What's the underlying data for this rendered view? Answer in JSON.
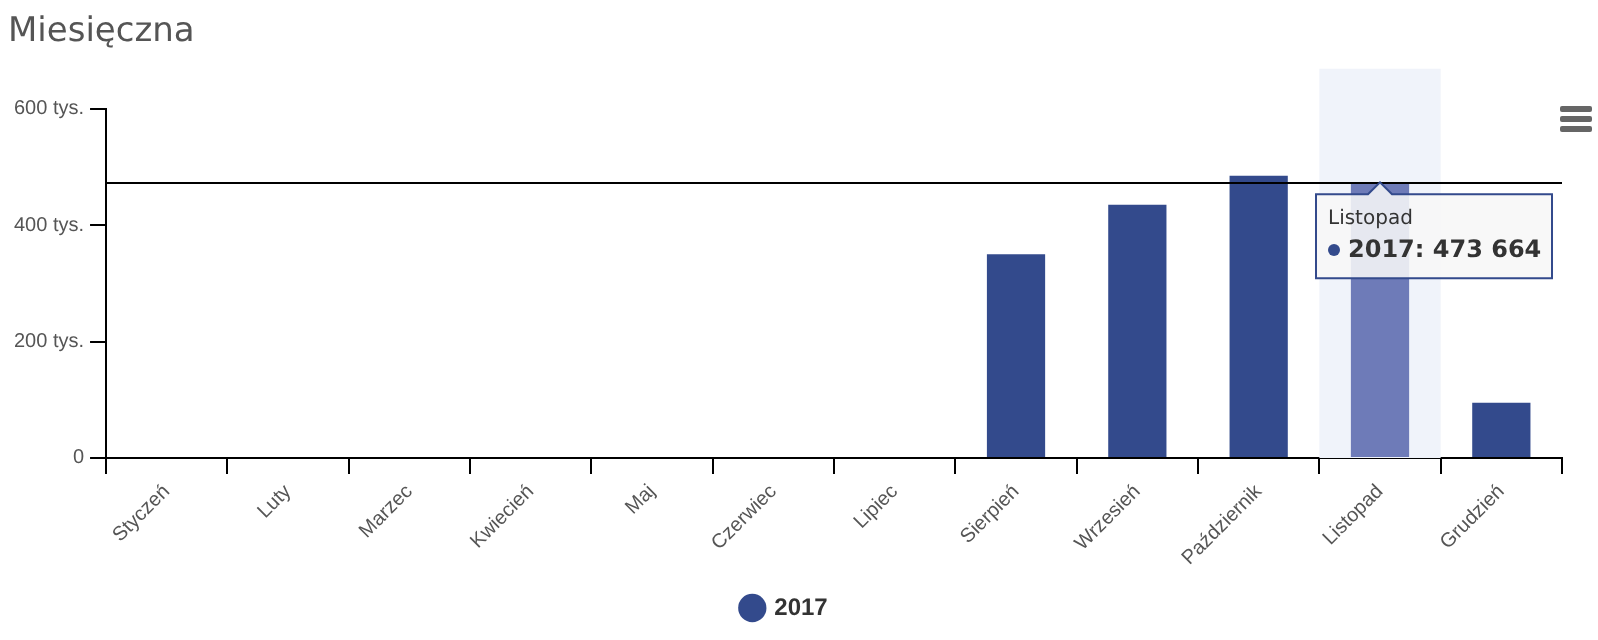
{
  "chart_data": {
    "type": "bar",
    "title": "Miesięczna",
    "categories": [
      "Styczeń",
      "Luty",
      "Marzec",
      "Kwiecień",
      "Maj",
      "Czerwiec",
      "Lipiec",
      "Sierpień",
      "Wrzesień",
      "Październik",
      "Listopad",
      "Grudzień"
    ],
    "series": [
      {
        "name": "2017",
        "color": "#334a8c",
        "colors": [
          "#334a8c",
          "#334a8c",
          "#334a8c",
          "#334a8c",
          "#334a8c",
          "#334a8c",
          "#334a8c",
          "#334a8c",
          "#334a8c",
          "#334a8c",
          "#6e7bb8",
          "#334a8c"
        ],
        "values": [
          null,
          null,
          null,
          null,
          null,
          null,
          null,
          350,
          435,
          485,
          473.664,
          95
        ]
      }
    ],
    "ylim": [
      0,
      600
    ],
    "yticks": [
      0,
      {
        "value": 200,
        "label": "200 tys."
      },
      {
        "value": 400,
        "label": "400 tys."
      },
      {
        "value": 600,
        "label": "600 tys."
      }
    ],
    "ref_lines": [
      {
        "axis": "y",
        "value": 473.664,
        "color": "#000000"
      }
    ],
    "bands": [
      {
        "axis": "x",
        "from": "Listopad",
        "to": "Listopad",
        "color": "#f0f3fa"
      }
    ],
    "annotations": [
      {
        "text": "Listopad",
        "x": "Listopad",
        "y": 473.664
      },
      {
        "text": "2017: 473 664",
        "x": "Listopad",
        "y": 473.664
      }
    ],
    "grid": false,
    "legend": "bottom"
  }
}
